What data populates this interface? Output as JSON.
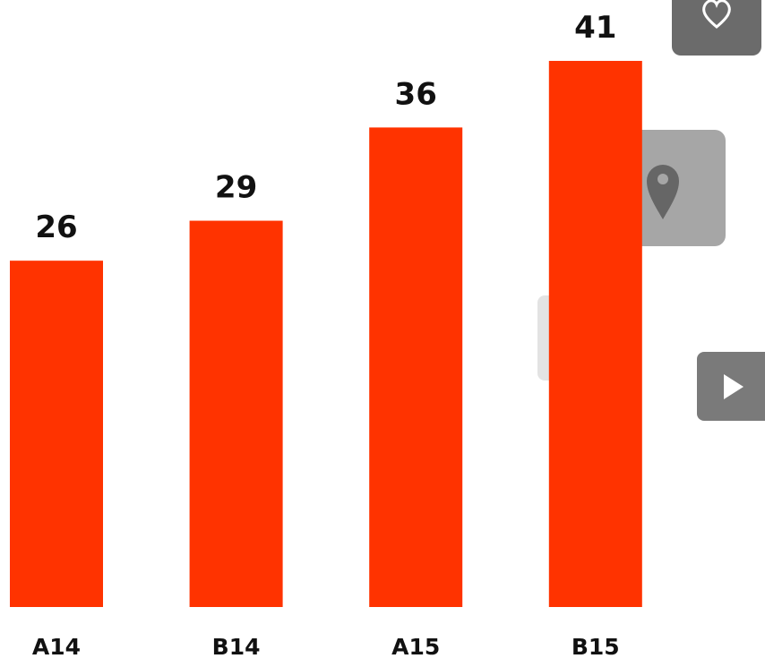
{
  "chart_data": {
    "type": "bar",
    "categories": [
      "A14",
      "B14",
      "A15",
      "B15"
    ],
    "values": [
      26,
      29,
      36,
      41
    ],
    "color": "#ff3300"
  }
}
